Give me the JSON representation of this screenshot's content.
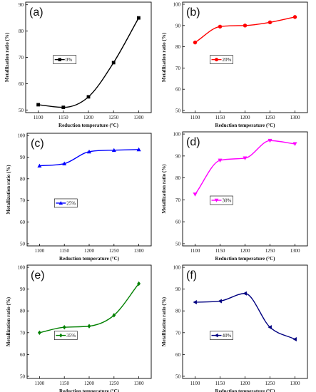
{
  "chart_data": [
    {
      "type": "line",
      "panel_label": "(a)",
      "xlabel": "Reduction temperature (°C)",
      "ylabel": "Metallization ratio (%)",
      "x": [
        1100,
        1150,
        1200,
        1250,
        1300
      ],
      "xlim": [
        1075,
        1325
      ],
      "ylim": [
        49,
        91
      ],
      "yticks": [
        50,
        60,
        70,
        80,
        90
      ],
      "grid": false,
      "legend_position": "center-left",
      "series": [
        {
          "name": "0%",
          "color": "#000000",
          "marker": "square",
          "values": [
            52,
            51,
            55,
            68,
            85
          ]
        }
      ]
    },
    {
      "type": "line",
      "panel_label": "(b)",
      "xlabel": "Reduction temperature (°C)",
      "ylabel": "Metallization ratio (%)",
      "x": [
        1100,
        1150,
        1200,
        1250,
        1300
      ],
      "xlim": [
        1075,
        1325
      ],
      "ylim": [
        49,
        101
      ],
      "yticks": [
        50,
        60,
        70,
        80,
        90,
        100
      ],
      "grid": false,
      "legend_position": "center-left",
      "series": [
        {
          "name": "20%",
          "color": "#ff0000",
          "marker": "circle",
          "values": [
            82,
            89.5,
            90,
            91.5,
            94
          ]
        }
      ]
    },
    {
      "type": "line",
      "panel_label": "(c)",
      "xlabel": "Reduction temperature (°C)",
      "ylabel": "Metallization ratio (%)",
      "x": [
        1100,
        1150,
        1200,
        1250,
        1300
      ],
      "xlim": [
        1075,
        1325
      ],
      "ylim": [
        49,
        101
      ],
      "yticks": [
        50,
        60,
        70,
        80,
        90,
        100
      ],
      "grid": false,
      "legend_position": "center-left",
      "series": [
        {
          "name": "25%",
          "color": "#0000ff",
          "marker": "triangle-up",
          "values": [
            86,
            87,
            92.5,
            93.2,
            93.5
          ]
        }
      ]
    },
    {
      "type": "line",
      "panel_label": "(d)",
      "xlabel": "Reduction temperature (°C)",
      "ylabel": "Metallization ratio (%)",
      "x": [
        1100,
        1150,
        1200,
        1250,
        1300
      ],
      "xlim": [
        1075,
        1325
      ],
      "ylim": [
        49,
        101
      ],
      "yticks": [
        50,
        60,
        70,
        80,
        90,
        100
      ],
      "grid": false,
      "legend_position": "center-left",
      "series": [
        {
          "name": "30%",
          "color": "#ff00ff",
          "marker": "triangle-down",
          "values": [
            72.5,
            88,
            89,
            97,
            95.5
          ]
        }
      ]
    },
    {
      "type": "line",
      "panel_label": "(e)",
      "xlabel": "Reduction temperature (°C)",
      "ylabel": "Metallization ratio (%)",
      "x": [
        1100,
        1150,
        1200,
        1250,
        1300
      ],
      "xlim": [
        1075,
        1325
      ],
      "ylim": [
        49,
        101
      ],
      "yticks": [
        50,
        60,
        70,
        80,
        90,
        100
      ],
      "grid": false,
      "legend_position": "center-left",
      "series": [
        {
          "name": "35%",
          "color": "#008000",
          "marker": "diamond",
          "values": [
            70,
            72.5,
            73,
            78,
            92.5
          ]
        }
      ]
    },
    {
      "type": "line",
      "panel_label": "(f)",
      "xlabel": "Reduction temperature (°C)",
      "ylabel": "Metallization ratio (%)",
      "x": [
        1100,
        1150,
        1200,
        1250,
        1300
      ],
      "xlim": [
        1075,
        1325
      ],
      "ylim": [
        49,
        101
      ],
      "yticks": [
        50,
        60,
        70,
        80,
        90,
        100
      ],
      "grid": false,
      "legend_position": "center-left",
      "series": [
        {
          "name": "40%",
          "color": "#000080",
          "marker": "triangle-left",
          "values": [
            84,
            84.5,
            88,
            72.5,
            67
          ]
        }
      ]
    }
  ]
}
